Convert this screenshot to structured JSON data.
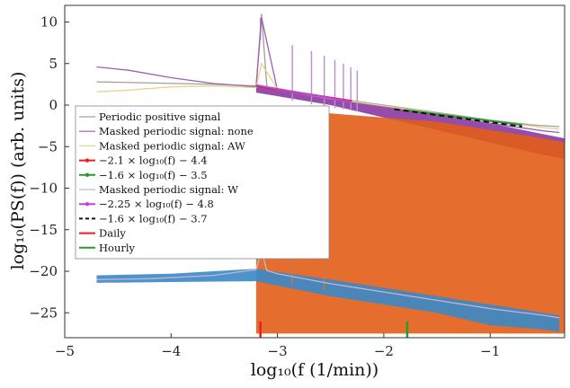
{
  "chart_data": {
    "type": "line",
    "title": "",
    "xlabel": "log₁₀(f (1/min))",
    "ylabel": "log₁₀(PS(f)) (arb. units)",
    "xlim": [
      -5,
      -0.3
    ],
    "ylim": [
      -28,
      12
    ],
    "xticks": [
      -5,
      -4,
      -3,
      -2,
      -1
    ],
    "yticks": [
      10,
      5,
      0,
      -5,
      -10,
      -15,
      -20,
      -25
    ],
    "xtick_labels": [
      "−5",
      "−4",
      "−3",
      "−2",
      "−1"
    ],
    "ytick_labels": [
      "10",
      "5",
      "0",
      "−5",
      "−10",
      "−15",
      "−20",
      "−25"
    ],
    "grid": false,
    "legend_position": "left",
    "series": [
      {
        "name": "Periodic positive signal",
        "color": "#a0a0a0",
        "style": "line",
        "x": [
          -4.7,
          -3.6,
          -3.2,
          -3.15,
          -3.1,
          -3.0,
          -2.5,
          -2.0,
          -1.5,
          -1.0,
          -0.6,
          -0.35
        ],
        "y": [
          2.8,
          2.5,
          2.3,
          11,
          2.2,
          1.9,
          0.9,
          0.0,
          -0.9,
          -1.8,
          -2.4,
          -2.6
        ]
      },
      {
        "name": "Masked periodic signal:  none",
        "color": "#9b5fb5",
        "style": "line",
        "x": [
          -4.7,
          -4.4,
          -4.0,
          -3.6,
          -3.2,
          -3.15,
          -3.0,
          -2.5,
          -2.0,
          -1.5,
          -1.0,
          -0.5,
          -0.35
        ],
        "y": [
          4.6,
          4.2,
          3.3,
          2.6,
          2.2,
          10.5,
          1.8,
          0.7,
          -0.2,
          -1.2,
          -2.2,
          -3.1,
          -3.3
        ]
      },
      {
        "name": "Masked periodic signal:  AW",
        "color": "#e6d48a",
        "style": "line",
        "x": [
          -4.7,
          -4.4,
          -4.0,
          -3.6,
          -3.2,
          -3.15,
          -3.0,
          -2.5,
          -2.0,
          -1.5,
          -1.0,
          -0.5,
          -0.35
        ],
        "y": [
          1.6,
          1.8,
          2.2,
          2.3,
          2.1,
          5.0,
          1.9,
          0.8,
          -0.1,
          -1.0,
          -1.9,
          -2.7,
          -2.9
        ]
      },
      {
        "name": "−2.1 × log₁₀(f) − 4.4",
        "color": "#e8201a",
        "style": "fit",
        "x": [
          -3.2,
          -2.3
        ],
        "y": [
          2.3,
          0.5
        ]
      },
      {
        "name": "−1.6 × log₁₀(f) − 3.5",
        "color": "#2a9a2a",
        "style": "fit",
        "x": [
          -1.8,
          -0.7
        ],
        "y": [
          -0.6,
          -2.4
        ]
      },
      {
        "name": "Masked periodic signal:  W",
        "color": "#c7b3d3",
        "style": "line",
        "x": [
          -4.7,
          -4.2,
          -3.6,
          -3.2,
          -3.15,
          -3.1,
          -3.0,
          -2.5,
          -2.0,
          -1.5,
          -1.0,
          -0.5,
          -0.35
        ],
        "y": [
          -21.0,
          -20.9,
          -20.5,
          -19.8,
          -17.5,
          -19.9,
          -20.3,
          -21.5,
          -22.5,
          -23.5,
          -24.5,
          -25.3,
          -25.6
        ]
      },
      {
        "name": "−2.25 × log₁₀(f) − 4.8",
        "color": "#c040e0",
        "style": "fit",
        "x": [
          -3.2,
          -2.3
        ],
        "y": [
          2.4,
          0.4
        ]
      },
      {
        "name": "−1.6 × log₁₀(f) − 3.7",
        "color": "#111111",
        "style": "dashed",
        "x": [
          -1.9,
          -0.7
        ],
        "y": [
          -0.5,
          -2.6
        ]
      },
      {
        "name": "Daily",
        "color": "#e8201a",
        "style": "marker",
        "x": [
          -3.16
        ],
        "y": [
          -27
        ]
      },
      {
        "name": "Hourly",
        "color": "#2a9a2a",
        "style": "marker",
        "x": [
          -1.78
        ],
        "y": [
          -27
        ]
      }
    ],
    "background_fills": [
      {
        "color": "#8a3aa0",
        "kind": "band",
        "x": [
          -3.2,
          -2.5,
          -2.0,
          -1.5,
          -1.0,
          -0.5,
          -0.3
        ],
        "y_top": [
          2.2,
          1.0,
          0.0,
          -1.2,
          -2.2,
          -3.5,
          -4.0
        ],
        "y_bottom": [
          1.5,
          0.0,
          -1.5,
          -3.0,
          -4.5,
          -6.0,
          -6.5
        ]
      },
      {
        "color": "#e25d17",
        "kind": "band",
        "x": [
          -3.2,
          -2.5,
          -2.0,
          -1.5,
          -1.0,
          -0.5,
          -0.3
        ],
        "y_top": [
          -0.5,
          -1.0,
          -1.5,
          -2.0,
          -3.0,
          -4.0,
          -4.5
        ],
        "y_bottom": [
          -27.5,
          -27.5,
          -27.5,
          -27.5,
          -27.5,
          -27.5,
          -27.5
        ]
      },
      {
        "color": "#3a88c8",
        "kind": "band",
        "x": [
          -4.7,
          -4.0,
          -3.2,
          -2.5,
          -2.0,
          -1.5,
          -1.0,
          -0.5,
          -0.35
        ],
        "y_top": [
          -20.5,
          -20.3,
          -19.7,
          -21.0,
          -22.0,
          -23.0,
          -24.0,
          -25.0,
          -25.3
        ],
        "y_bottom": [
          -21.4,
          -21.3,
          -21.2,
          -23.0,
          -24.0,
          -25.0,
          -26.5,
          -27.0,
          -27.3
        ]
      }
    ],
    "spikes": {
      "purple_x": [
        -3.16,
        -2.86,
        -2.68,
        -2.56,
        -2.46,
        -2.38,
        -2.31,
        -2.25
      ],
      "orange_x": [
        -3.16,
        -2.86,
        -2.56
      ]
    }
  }
}
